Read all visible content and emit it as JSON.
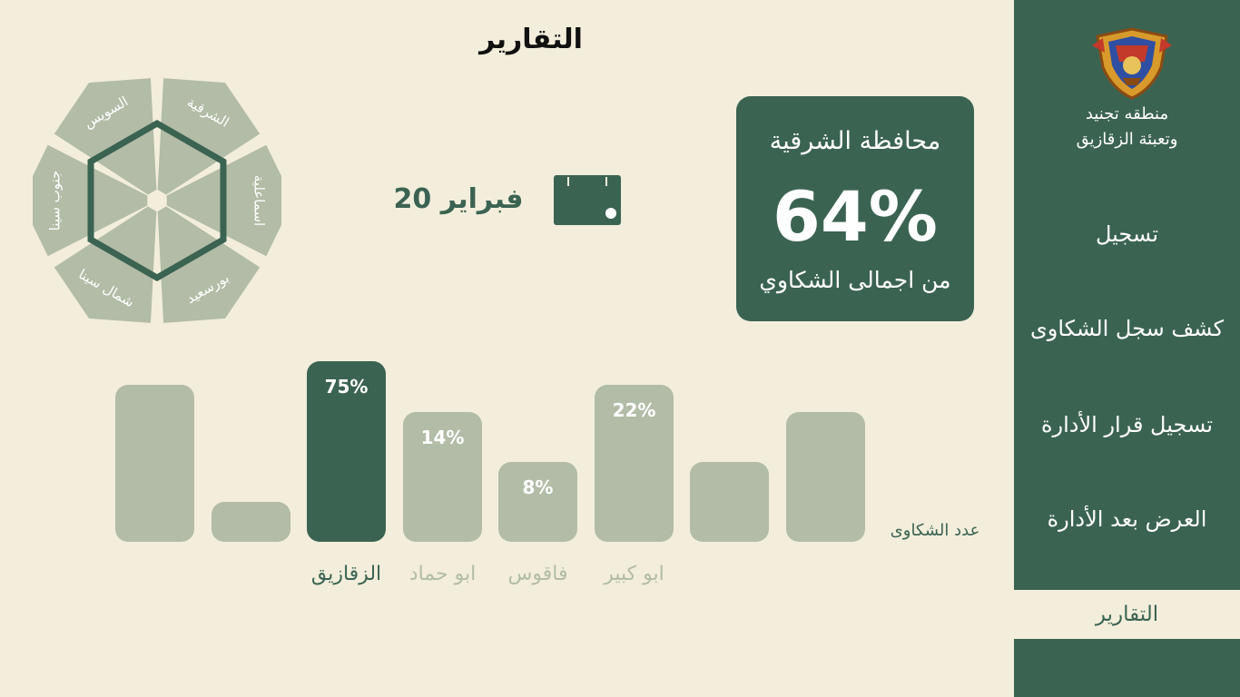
{
  "header": {
    "title": "التقارير"
  },
  "sidebar": {
    "org_line1": "منطقه تجنيد",
    "org_line2": "وتعبئة الزقازيق",
    "items": [
      {
        "label": "تسجيل"
      },
      {
        "label": "كشف  سجل الشكاوى"
      },
      {
        "label": "تسجيل قرار الأدارة"
      },
      {
        "label": "العرض بعد الأدارة"
      },
      {
        "label": "التقارير"
      }
    ],
    "active_item": "التقارير"
  },
  "stat_card": {
    "governorate": "محافظة الشرقية",
    "percent": "64%",
    "subtitle": "من اجمالى الشكاوي"
  },
  "date": {
    "label": "فبراير 20"
  },
  "hexagon": {
    "segments": [
      "الشرقية",
      "اسماعلية",
      "بورسعيد",
      "شمال سينا",
      "جنوب سينا",
      "السويس"
    ]
  },
  "chart_data": {
    "type": "bar",
    "categories": [
      "",
      "",
      "الزقازيق",
      "ابو حماد",
      "فاقوس",
      "ابو كبير",
      "",
      ""
    ],
    "value_labels": [
      "",
      "",
      "75%",
      "14%",
      "8%",
      "22%",
      "",
      ""
    ],
    "relative_heights": [
      0.87,
      0.22,
      1.0,
      0.72,
      0.44,
      0.87,
      0.44,
      0.72
    ],
    "highlighted": "الزقازيق",
    "ylabel": "عدد الشكاوى"
  },
  "colors": {
    "primary": "#3b6352",
    "background": "#f2eedb",
    "muted_bar": "#b2bca6"
  }
}
